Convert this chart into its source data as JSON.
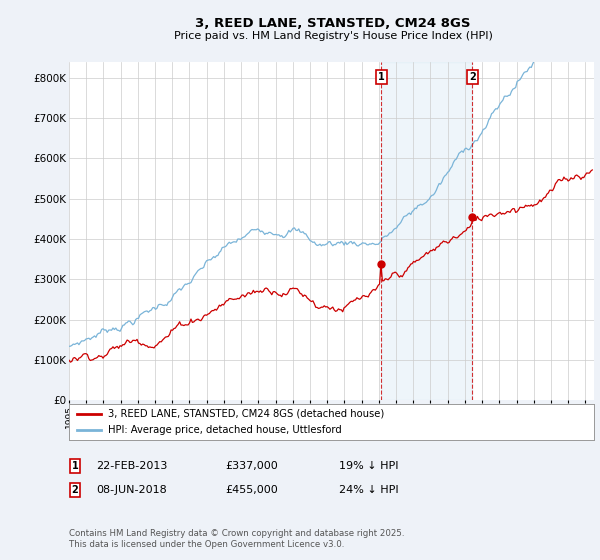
{
  "title": "3, REED LANE, STANSTED, CM24 8GS",
  "subtitle": "Price paid vs. HM Land Registry's House Price Index (HPI)",
  "yticks": [
    0,
    100000,
    200000,
    300000,
    400000,
    500000,
    600000,
    700000,
    800000
  ],
  "ytick_labels": [
    "£0",
    "£100K",
    "£200K",
    "£300K",
    "£400K",
    "£500K",
    "£600K",
    "£700K",
    "£800K"
  ],
  "ylim": [
    0,
    840000
  ],
  "xlim_start": 1995.0,
  "xlim_end": 2025.5,
  "hpi_color": "#7ab4d8",
  "price_color": "#cc0000",
  "marker1_x": 2013.13,
  "marker1_y": 337000,
  "marker2_x": 2018.44,
  "marker2_y": 455000,
  "legend_line1": "3, REED LANE, STANSTED, CM24 8GS (detached house)",
  "legend_line2": "HPI: Average price, detached house, Uttlesford",
  "footer": "Contains HM Land Registry data © Crown copyright and database right 2025.\nThis data is licensed under the Open Government Licence v3.0.",
  "bg_color": "#eef2f8",
  "plot_bg": "#ffffff",
  "grid_color": "#cccccc"
}
